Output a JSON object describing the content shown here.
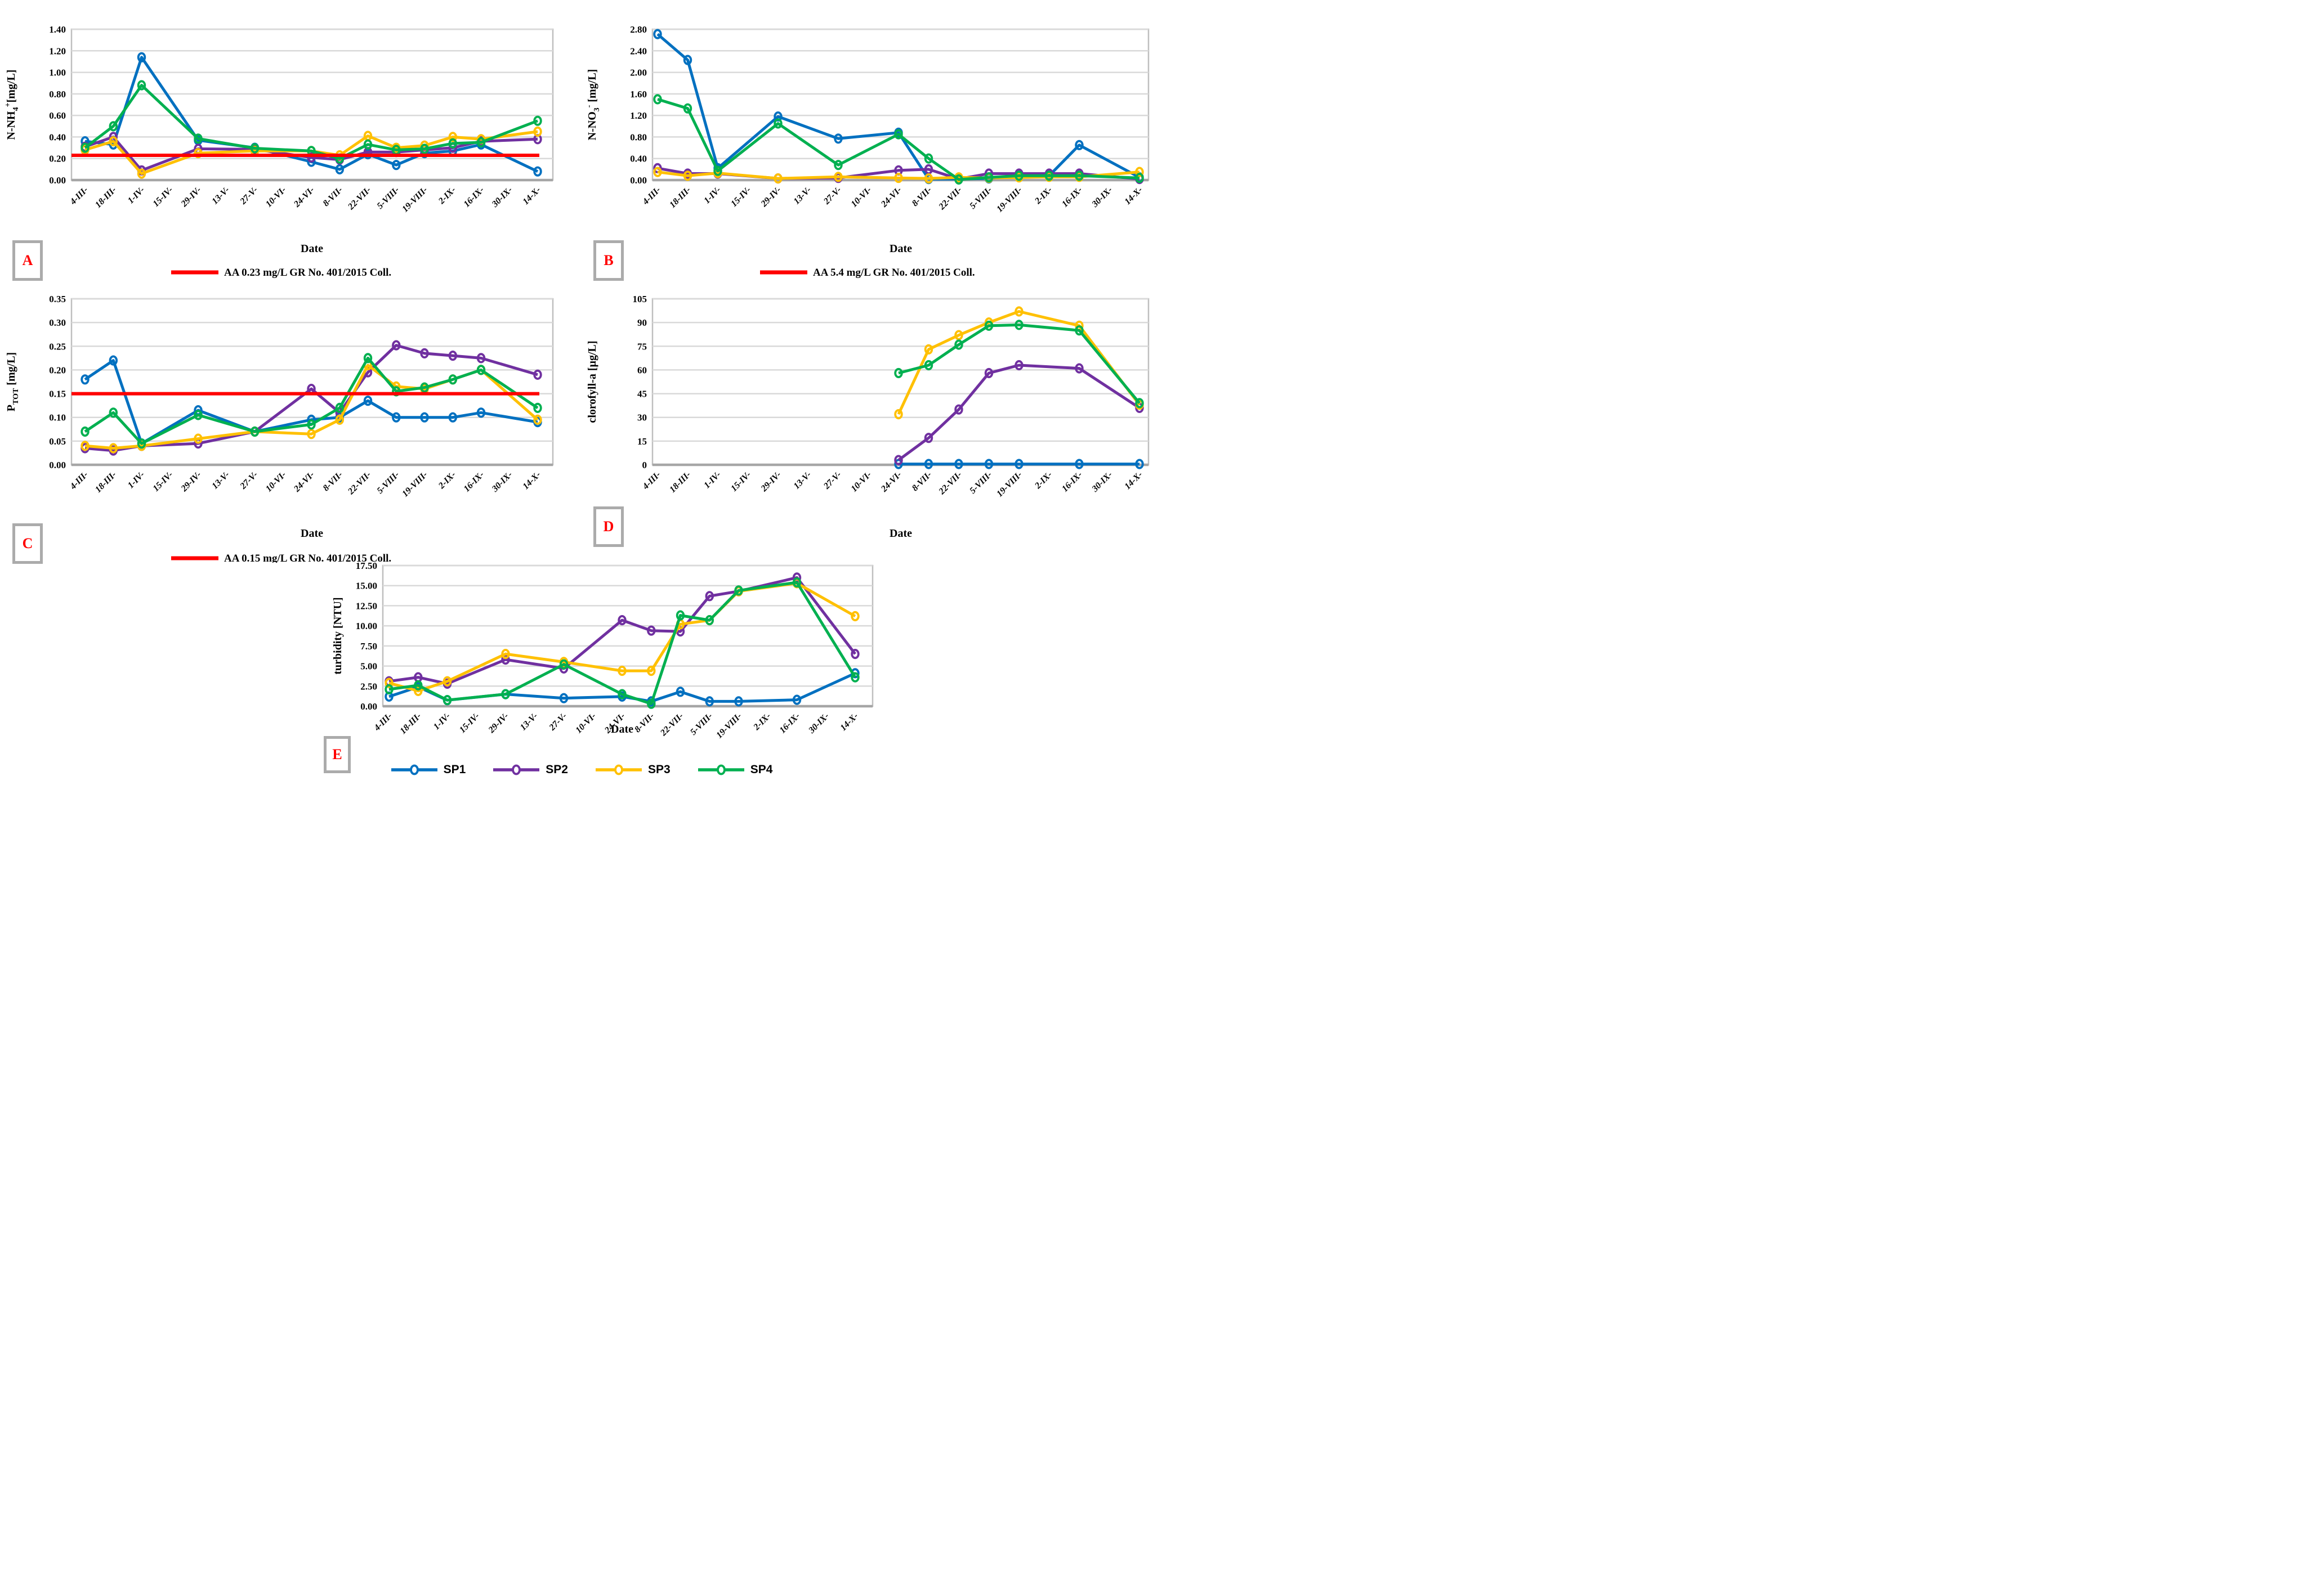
{
  "figure": {
    "date_axis_label": "Date"
  },
  "colors": {
    "sp1": "#0070C0",
    "sp2": "#7030A0",
    "sp3": "#FFC000",
    "sp4": "#00B050",
    "aa_line": "#FF0000",
    "gridline": "#D9D9D9",
    "plot_border": "#BFBFBF",
    "axis_bottom": "#A6A6A6",
    "panel_letter": "#FF0000",
    "panel_box_border": "#ABABAB"
  },
  "legend": {
    "items": [
      {
        "label": "SP1",
        "color": "#0070C0"
      },
      {
        "label": "SP2",
        "color": "#7030A0"
      },
      {
        "label": "SP3",
        "color": "#FFC000"
      },
      {
        "label": "SP4",
        "color": "#00B050"
      }
    ]
  },
  "chart_data": [
    {
      "type": "line",
      "panel": "A",
      "ylabel": "N-NH4+[mg/L]",
      "ylabel_rich": [
        {
          "t": "N-NH"
        },
        {
          "t": "4",
          "sub": true
        },
        {
          "t": "+",
          "sup": true
        },
        {
          "t": "[mg/L]"
        }
      ],
      "xlabel": "Date",
      "ylim": [
        0,
        1.4
      ],
      "ytick_labels": [
        "0.00",
        "0.20",
        "0.40",
        "0.60",
        "0.80",
        "1.00",
        "1.20",
        "1.40"
      ],
      "grid": true,
      "categories": [
        "4-III-",
        "18-III-",
        "1-IV-",
        "15-IV-",
        "29-IV-",
        "13-V-",
        "27-V-",
        "10-VI-",
        "24-VI-",
        "8-VII-",
        "22-VII-",
        "5-VIII-",
        "19-VIII-",
        "2-IX-",
        "16-IX-",
        "30-IX-",
        "14-X-"
      ],
      "aa_line": {
        "value": 0.23,
        "label": "AA 0.23 mg/L GR No. 401/2015 Coll."
      },
      "series": [
        {
          "name": "SP1",
          "color": "#0070C0",
          "values": [
            0.36,
            0.33,
            1.14,
            null,
            0.37,
            null,
            0.3,
            null,
            0.17,
            0.1,
            0.24,
            0.14,
            0.25,
            0.27,
            0.33,
            null,
            0.08
          ]
        },
        {
          "name": "SP2",
          "color": "#7030A0",
          "values": [
            0.31,
            0.4,
            0.09,
            null,
            0.29,
            null,
            0.285,
            null,
            0.21,
            0.19,
            0.26,
            0.26,
            0.28,
            0.3,
            0.36,
            null,
            0.38
          ]
        },
        {
          "name": "SP3",
          "color": "#FFC000",
          "values": [
            0.28,
            0.36,
            0.06,
            null,
            0.25,
            null,
            0.27,
            null,
            0.27,
            0.23,
            0.41,
            0.3,
            0.32,
            0.4,
            0.38,
            null,
            0.45
          ]
        },
        {
          "name": "SP4",
          "color": "#00B050",
          "values": [
            0.3,
            0.5,
            0.88,
            null,
            0.385,
            null,
            0.295,
            null,
            0.27,
            0.2,
            0.33,
            0.28,
            0.29,
            0.34,
            0.35,
            null,
            0.55
          ]
        }
      ]
    },
    {
      "type": "line",
      "panel": "B",
      "ylabel": "N-NO3- [mg/L]",
      "ylabel_rich": [
        {
          "t": "N-NO"
        },
        {
          "t": "3",
          "sub": true
        },
        {
          "t": "-",
          "sup": true
        },
        {
          "t": " [mg/L]"
        }
      ],
      "xlabel": "Date",
      "ylim": [
        0,
        2.8
      ],
      "ytick_labels": [
        "0.00",
        "0.40",
        "0.80",
        "1.20",
        "1.60",
        "2.00",
        "2.40",
        "2.80"
      ],
      "grid": true,
      "categories": [
        "4-III-",
        "18-III-",
        "1-IV-",
        "15-IV-",
        "29-IV-",
        "13-V-",
        "27-V-",
        "10-VI-",
        "24-VI-",
        "8-VII-",
        "22-VII-",
        "5-VIII-",
        "19-VIII-",
        "2-IX-",
        "16-IX-",
        "30-IX-",
        "14-X-"
      ],
      "aa_line": {
        "value": 5.4,
        "label": "AA 5.4 mg/L GR No. 401/2015 Coll."
      },
      "series": [
        {
          "name": "SP1",
          "color": "#0070C0",
          "values": [
            2.71,
            2.23,
            0.22,
            null,
            1.18,
            null,
            0.77,
            null,
            0.88,
            0.02,
            0.02,
            0.03,
            0.08,
            0.08,
            0.65,
            null,
            0.05
          ]
        },
        {
          "name": "SP2",
          "color": "#7030A0",
          "values": [
            0.22,
            0.12,
            0.12,
            null,
            0.03,
            null,
            0.04,
            null,
            0.18,
            0.2,
            0.02,
            0.12,
            0.12,
            0.12,
            0.12,
            null,
            0.02
          ]
        },
        {
          "name": "SP3",
          "color": "#FFC000",
          "values": [
            0.15,
            0.08,
            0.13,
            null,
            0.03,
            null,
            0.06,
            null,
            0.04,
            0.03,
            0.05,
            0.04,
            0.05,
            0.06,
            0.06,
            null,
            0.15
          ]
        },
        {
          "name": "SP4",
          "color": "#00B050",
          "values": [
            1.5,
            1.33,
            0.17,
            null,
            1.05,
            null,
            0.28,
            null,
            0.85,
            0.4,
            0.01,
            0.05,
            0.08,
            0.08,
            0.08,
            null,
            0.04
          ]
        }
      ]
    },
    {
      "type": "line",
      "panel": "C",
      "ylabel": "PTOT [mg/L]",
      "ylabel_rich": [
        {
          "t": "P"
        },
        {
          "t": "TOT",
          "sub": true
        },
        {
          "t": " [mg/L]"
        }
      ],
      "xlabel": "Date",
      "ylim": [
        0,
        0.35
      ],
      "ytick_labels": [
        "0.00",
        "0.05",
        "0.10",
        "0.15",
        "0.20",
        "0.25",
        "0.30",
        "0.35"
      ],
      "grid": true,
      "categories": [
        "4-III-",
        "18-III-",
        "1-IV-",
        "15-IV-",
        "29-IV-",
        "13-V-",
        "27-V-",
        "10-VI-",
        "24-VI-",
        "8-VII-",
        "22-VII-",
        "5-VIII-",
        "19-VIII-",
        "2-IX-",
        "16-IX-",
        "30-IX-",
        "14-X-"
      ],
      "aa_line": {
        "value": 0.15,
        "label": "AA 0.15 mg/L GR No. 401/2015 Coll."
      },
      "series": [
        {
          "name": "SP1",
          "color": "#0070C0",
          "values": [
            0.18,
            0.22,
            0.045,
            null,
            0.115,
            null,
            0.07,
            null,
            0.095,
            0.1,
            0.135,
            0.1,
            0.1,
            0.1,
            0.11,
            null,
            0.09
          ]
        },
        {
          "name": "SP2",
          "color": "#7030A0",
          "values": [
            0.035,
            0.03,
            0.04,
            null,
            0.045,
            null,
            0.07,
            null,
            0.16,
            0.11,
            0.195,
            0.252,
            0.235,
            0.23,
            0.225,
            null,
            0.19
          ]
        },
        {
          "name": "SP3",
          "color": "#FFC000",
          "values": [
            0.04,
            0.035,
            0.04,
            null,
            0.055,
            null,
            0.07,
            null,
            0.065,
            0.095,
            0.21,
            0.165,
            0.16,
            0.18,
            0.2,
            null,
            0.095
          ]
        },
        {
          "name": "SP4",
          "color": "#00B050",
          "values": [
            0.07,
            0.11,
            0.045,
            null,
            0.105,
            null,
            0.07,
            null,
            0.085,
            0.12,
            0.225,
            0.155,
            0.163,
            0.18,
            0.2,
            null,
            0.12
          ]
        }
      ]
    },
    {
      "type": "line",
      "panel": "D",
      "ylabel": "clorofyll-a [µg/L]",
      "ylabel_rich": [
        {
          "t": "clorofyll-a [µg/L]"
        }
      ],
      "xlabel": "Date",
      "ylim": [
        0,
        105
      ],
      "ytick_labels": [
        "0",
        "15",
        "30",
        "45",
        "60",
        "75",
        "90",
        "105"
      ],
      "grid": true,
      "categories": [
        "4-III-",
        "18-III-",
        "1-IV-",
        "15-IV-",
        "29-IV-",
        "13-V-",
        "27-V-",
        "10-VI-",
        "24-VI-",
        "8-VII-",
        "22-VII-",
        "5-VIII-",
        "19-VIII-",
        "2-IX-",
        "16-IX-",
        "30-IX-",
        "14-X-"
      ],
      "aa_line": null,
      "series": [
        {
          "name": "SP1",
          "color": "#0070C0",
          "values": [
            null,
            null,
            null,
            null,
            null,
            null,
            null,
            null,
            0.5,
            0.5,
            0.5,
            0.5,
            0.5,
            null,
            0.5,
            null,
            0.5
          ]
        },
        {
          "name": "SP2",
          "color": "#7030A0",
          "values": [
            null,
            null,
            null,
            null,
            null,
            null,
            null,
            null,
            3,
            17,
            35,
            58,
            63,
            null,
            61,
            null,
            36
          ]
        },
        {
          "name": "SP3",
          "color": "#FFC000",
          "values": [
            null,
            null,
            null,
            null,
            null,
            null,
            null,
            null,
            32,
            73,
            82,
            90,
            97,
            null,
            88,
            null,
            38
          ]
        },
        {
          "name": "SP4",
          "color": "#00B050",
          "values": [
            null,
            null,
            null,
            null,
            null,
            null,
            null,
            null,
            58,
            63,
            76,
            88,
            88.5,
            null,
            85,
            null,
            39
          ]
        }
      ]
    },
    {
      "type": "line",
      "panel": "E",
      "ylabel": "turbidity [NTU]",
      "ylabel_rich": [
        {
          "t": "turbidity [NTU]"
        }
      ],
      "xlabel": "Date",
      "ylim": [
        0,
        17.5
      ],
      "ytick_labels": [
        "0.00",
        "2.50",
        "5.00",
        "7.50",
        "10.00",
        "12.50",
        "15.00",
        "17.50"
      ],
      "grid": true,
      "categories": [
        "4-III-",
        "18-III-",
        "1-IV-",
        "15-IV-",
        "29-IV-",
        "13-V-",
        "27-V-",
        "10-VI-",
        "24-VI-",
        "8-VII-",
        "22-VII-",
        "5-VIII-",
        "19-VIII-",
        "2-IX-",
        "16-IX-",
        "30-IX-",
        "14-X-"
      ],
      "aa_line": null,
      "series": [
        {
          "name": "SP1",
          "color": "#0070C0",
          "values": [
            1.2,
            2.4,
            0.75,
            null,
            1.5,
            null,
            1.0,
            null,
            1.2,
            0.6,
            1.8,
            0.6,
            0.6,
            null,
            0.8,
            null,
            4.1
          ]
        },
        {
          "name": "SP2",
          "color": "#7030A0",
          "values": [
            3.1,
            3.6,
            2.8,
            null,
            5.8,
            null,
            4.7,
            null,
            10.7,
            9.4,
            9.3,
            13.7,
            14.3,
            null,
            16.0,
            null,
            6.5
          ]
        },
        {
          "name": "SP3",
          "color": "#FFC000",
          "values": [
            2.9,
            1.9,
            3.1,
            null,
            6.5,
            null,
            5.5,
            null,
            4.4,
            4.4,
            10.2,
            10.7,
            14.3,
            null,
            15.3,
            null,
            11.2
          ]
        },
        {
          "name": "SP4",
          "color": "#00B050",
          "values": [
            2.1,
            2.6,
            0.76,
            null,
            1.5,
            null,
            5.2,
            null,
            1.5,
            0.3,
            11.3,
            10.7,
            14.4,
            null,
            15.4,
            null,
            3.6
          ]
        }
      ]
    }
  ]
}
